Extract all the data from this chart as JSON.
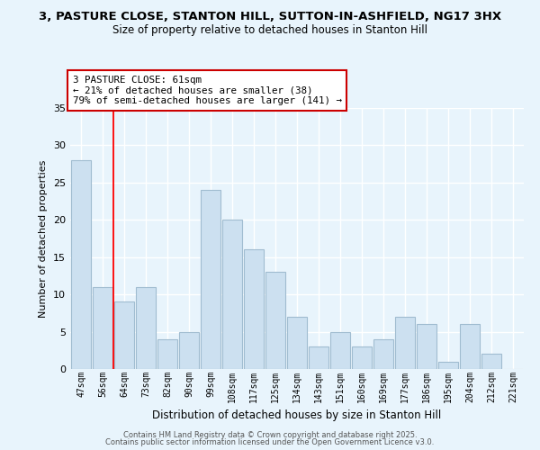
{
  "title": "3, PASTURE CLOSE, STANTON HILL, SUTTON-IN-ASHFIELD, NG17 3HX",
  "subtitle": "Size of property relative to detached houses in Stanton Hill",
  "xlabel": "Distribution of detached houses by size in Stanton Hill",
  "ylabel": "Number of detached properties",
  "categories": [
    "47sqm",
    "56sqm",
    "64sqm",
    "73sqm",
    "82sqm",
    "90sqm",
    "99sqm",
    "108sqm",
    "117sqm",
    "125sqm",
    "134sqm",
    "143sqm",
    "151sqm",
    "160sqm",
    "169sqm",
    "177sqm",
    "186sqm",
    "195sqm",
    "204sqm",
    "212sqm",
    "221sqm"
  ],
  "values": [
    28,
    11,
    9,
    11,
    4,
    5,
    24,
    20,
    16,
    13,
    7,
    3,
    5,
    3,
    4,
    7,
    6,
    1,
    6,
    2,
    0
  ],
  "bar_color": "#cce0f0",
  "bar_edge_color": "#a0bcd0",
  "red_line_x": 1.5,
  "annotation_text_line1": "3 PASTURE CLOSE: 61sqm",
  "annotation_text_line2": "← 21% of detached houses are smaller (38)",
  "annotation_text_line3": "79% of semi-detached houses are larger (141) →",
  "annotation_box_facecolor": "#ffffff",
  "annotation_box_edgecolor": "#cc0000",
  "ylim": [
    0,
    35
  ],
  "yticks": [
    0,
    5,
    10,
    15,
    20,
    25,
    30,
    35
  ],
  "bg_color": "#e8f4fc",
  "grid_color": "#ffffff",
  "footer1": "Contains HM Land Registry data © Crown copyright and database right 2025.",
  "footer2": "Contains public sector information licensed under the Open Government Licence v3.0."
}
